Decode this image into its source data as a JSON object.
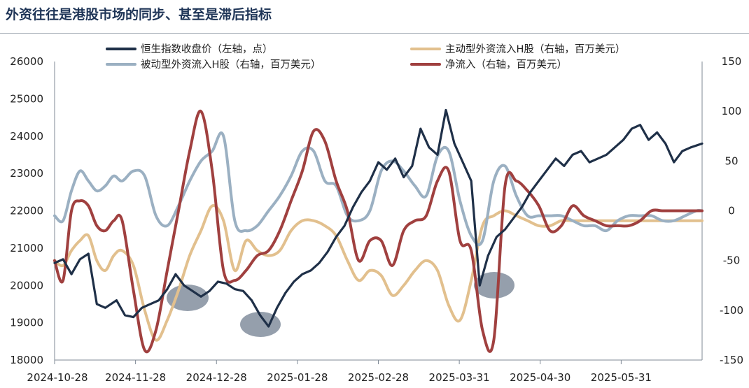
{
  "header": {
    "title": "外资往往是港股市场的同步、甚至是滞后指标"
  },
  "colors": {
    "hsi": "#1f3048",
    "passive": "#9bb0c2",
    "active": "#e2c08e",
    "net": "#a0403f",
    "highlight": "#3e5068"
  },
  "chart_data": {
    "type": "line",
    "title": "",
    "left_axis": {
      "ylim": [
        18000,
        26000
      ],
      "ticks": [
        "18000",
        "19000",
        "20000",
        "21000",
        "22000",
        "23000",
        "24000",
        "25000",
        "26000"
      ]
    },
    "right_axis": {
      "ylim": [
        -150,
        150
      ],
      "ticks": [
        "-150",
        "-100",
        "-50",
        "0",
        "50",
        "100",
        "150"
      ]
    },
    "x_ticks": [
      "2024-10-28",
      "2024-11-28",
      "2024-12-28",
      "2025-01-28",
      "2025-02-28",
      "2025-03-31",
      "2025-04-30",
      "2025-05-31"
    ],
    "x_range": [
      0,
      230
    ],
    "legend_position": "top",
    "series": [
      {
        "key": "hsi",
        "name": "恒生指数收盘价（左轴，点）",
        "axis": "left",
        "x": [
          0,
          3,
          6,
          9,
          12,
          15,
          18,
          22,
          25,
          28,
          31,
          34,
          37,
          40,
          43,
          46,
          49,
          52,
          55,
          58,
          61,
          64,
          67,
          70,
          73,
          76,
          79,
          82,
          85,
          88,
          91,
          94,
          97,
          100,
          103,
          106,
          109,
          112,
          115,
          118,
          121,
          124,
          127,
          130,
          133,
          136,
          139,
          142,
          145,
          148,
          151,
          154,
          157,
          160,
          163,
          166,
          169,
          172,
          175,
          178,
          181,
          184,
          187,
          190,
          193,
          196,
          199,
          202,
          205,
          208,
          211,
          214,
          217,
          220,
          223,
          226,
          230
        ],
        "values": [
          20600,
          20700,
          20300,
          20700,
          20850,
          19500,
          19400,
          19600,
          19200,
          19150,
          19400,
          19500,
          19600,
          19900,
          20300,
          20000,
          19850,
          19700,
          19850,
          20100,
          20050,
          19900,
          19850,
          19600,
          19200,
          18900,
          19400,
          19800,
          20100,
          20300,
          20400,
          20600,
          20900,
          21300,
          21600,
          22100,
          22500,
          22800,
          23300,
          23100,
          23400,
          22900,
          23200,
          24200,
          23700,
          23500,
          24700,
          23800,
          23300,
          22800,
          20000,
          20800,
          21300,
          21500,
          21800,
          22100,
          22500,
          22800,
          23100,
          23400,
          23200,
          23500,
          23600,
          23300,
          23400,
          23500,
          23700,
          23900,
          24200,
          24300,
          23900,
          24100,
          23800,
          23300,
          23600,
          23700,
          23800
        ]
      },
      {
        "key": "passive",
        "name": "被动型外资流入H股（右轴，百万美元）",
        "axis": "right",
        "x": [
          0,
          3,
          6,
          9,
          12,
          15,
          18,
          21,
          24,
          28,
          32,
          36,
          40,
          44,
          48,
          52,
          56,
          60,
          64,
          68,
          72,
          76,
          80,
          84,
          88,
          92,
          96,
          100,
          104,
          108,
          112,
          116,
          120,
          124,
          128,
          132,
          136,
          140,
          144,
          148,
          152,
          156,
          160,
          164,
          168,
          172,
          176,
          180,
          184,
          188,
          192,
          196,
          200,
          204,
          208,
          212,
          216,
          220,
          224,
          228,
          230
        ],
        "values": [
          -5,
          -10,
          20,
          40,
          30,
          20,
          25,
          35,
          30,
          40,
          35,
          -5,
          -15,
          5,
          30,
          50,
          60,
          75,
          -10,
          -20,
          -15,
          0,
          15,
          35,
          60,
          60,
          30,
          25,
          -5,
          -10,
          0,
          40,
          50,
          40,
          25,
          15,
          55,
          60,
          10,
          -25,
          -30,
          30,
          45,
          15,
          -5,
          -5,
          -5,
          -5,
          -10,
          -15,
          -15,
          -20,
          -10,
          -5,
          -5,
          -5,
          -10,
          -10,
          -5,
          0,
          0
        ]
      },
      {
        "key": "active",
        "name": "主动型外资流入H股（右轴，百万美元）",
        "axis": "right",
        "x": [
          0,
          3,
          6,
          9,
          12,
          15,
          18,
          21,
          24,
          28,
          32,
          36,
          40,
          44,
          48,
          52,
          56,
          60,
          64,
          68,
          72,
          76,
          80,
          84,
          88,
          92,
          96,
          100,
          104,
          108,
          112,
          116,
          120,
          124,
          128,
          132,
          136,
          140,
          144,
          148,
          152,
          156,
          160,
          164,
          168,
          172,
          176,
          180,
          184,
          188,
          192,
          196,
          200,
          204,
          208,
          212,
          216,
          220,
          224,
          228,
          230
        ],
        "values": [
          -50,
          -55,
          -40,
          -30,
          -25,
          -50,
          -60,
          -45,
          -40,
          -55,
          -100,
          -130,
          -110,
          -80,
          -45,
          -20,
          5,
          -10,
          -60,
          -30,
          -40,
          -45,
          -40,
          -20,
          -10,
          -10,
          -15,
          -25,
          -50,
          -70,
          -60,
          -65,
          -85,
          -75,
          -60,
          -50,
          -60,
          -95,
          -110,
          -70,
          -15,
          -5,
          0,
          -5,
          -10,
          -15,
          -15,
          -10,
          -10,
          -10,
          -10,
          -10,
          -10,
          -10,
          -10,
          -10,
          -10,
          -10,
          -10,
          -10,
          -10
        ]
      },
      {
        "key": "net",
        "name": "净流入（右轴，百万美元）",
        "axis": "right",
        "x": [
          0,
          3,
          6,
          9,
          12,
          15,
          18,
          21,
          24,
          28,
          32,
          36,
          40,
          44,
          48,
          52,
          56,
          60,
          64,
          68,
          72,
          76,
          80,
          84,
          88,
          92,
          96,
          100,
          104,
          108,
          112,
          116,
          120,
          124,
          128,
          132,
          136,
          140,
          144,
          148,
          152,
          156,
          160,
          164,
          168,
          172,
          176,
          180,
          184,
          188,
          192,
          196,
          200,
          204,
          208,
          212,
          216,
          220,
          224,
          228,
          230
        ],
        "values": [
          -50,
          -70,
          0,
          10,
          5,
          -15,
          -20,
          -10,
          -10,
          -80,
          -140,
          -120,
          -60,
          0,
          60,
          100,
          40,
          -60,
          -70,
          -60,
          -45,
          -40,
          -20,
          10,
          40,
          80,
          70,
          30,
          0,
          -50,
          -30,
          -30,
          -55,
          -20,
          -10,
          -5,
          30,
          40,
          -30,
          -40,
          -120,
          -130,
          25,
          30,
          20,
          5,
          -20,
          -15,
          5,
          -5,
          -10,
          -15,
          -15,
          -15,
          -10,
          0,
          0,
          0,
          0,
          0,
          0
        ]
      }
    ]
  }
}
